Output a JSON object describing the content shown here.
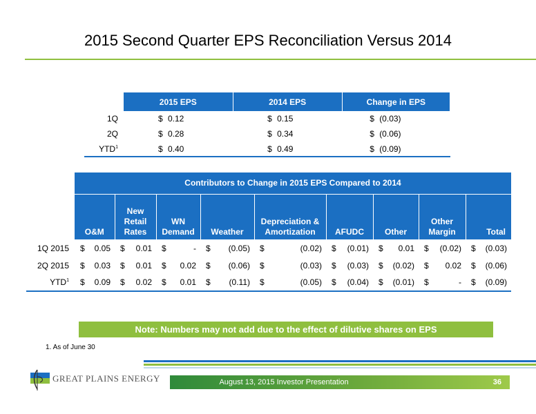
{
  "title": "2015 Second Quarter EPS Reconciliation Versus 2014",
  "eps_table": {
    "headers": [
      "2015 EPS",
      "2014 EPS",
      "Change in EPS"
    ],
    "rows": [
      {
        "label": "1Q",
        "sup": "",
        "v2015": "0.12",
        "v2014": "0.15",
        "change": "(0.03)"
      },
      {
        "label": "2Q",
        "sup": "",
        "v2015": "0.28",
        "v2014": "0.34",
        "change": "(0.06)"
      },
      {
        "label": "YTD",
        "sup": "1",
        "v2015": "0.40",
        "v2014": "0.49",
        "change": "(0.09)"
      }
    ],
    "currency": "$"
  },
  "contributors_table": {
    "banner": "Contributors to Change in 2015 EPS Compared to 2014",
    "columns": [
      "O&M",
      "New Retail Rates",
      "WN Demand",
      "Weather",
      "Depreciation & Amortization",
      "AFUDC",
      "Other",
      "Other Margin",
      "Total"
    ],
    "rows": [
      {
        "label": "1Q 2015",
        "sup": "",
        "values": [
          "0.05",
          "0.01",
          "-",
          "(0.05)",
          "(0.02)",
          "(0.01)",
          "0.01",
          "(0.02)",
          "(0.03)"
        ]
      },
      {
        "label": "2Q 2015",
        "sup": "",
        "values": [
          "0.03",
          "0.01",
          "0.02",
          "(0.06)",
          "(0.03)",
          "(0.03)",
          "(0.02)",
          "0.02",
          "(0.06)"
        ]
      },
      {
        "label": "YTD",
        "sup": "1",
        "values": [
          "0.09",
          "0.02",
          "0.01",
          "(0.11)",
          "(0.05)",
          "(0.04)",
          "(0.01)",
          "-",
          "(0.09)"
        ]
      }
    ],
    "currency": "$"
  },
  "note": "Note: Numbers may not add due to the effect of dilutive shares on EPS",
  "footnote": "1.   As of June 30",
  "logo_text": "GREAT PLAINS ENERGY",
  "footer_text": "August 13, 2015 Investor Presentation",
  "page_number": "36",
  "colors": {
    "header_blue": "#1b6fc2",
    "accent_green": "#8fbf3f"
  }
}
